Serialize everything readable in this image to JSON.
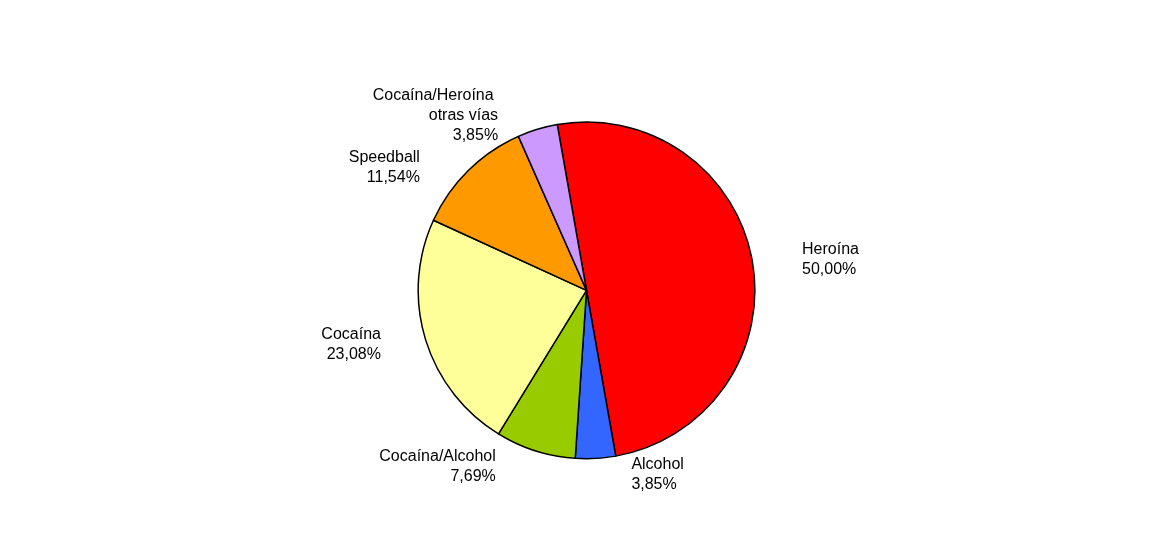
{
  "chart_data": {
    "type": "pie",
    "categories": [
      "Heroína",
      "Alcohol",
      "Cocaína/Alcohol",
      "Cocaína",
      "Speedball",
      "Cocaína/Heroína otras vías"
    ],
    "values": [
      50.0,
      3.85,
      7.69,
      23.08,
      11.54,
      3.85
    ],
    "value_labels": [
      "50,00%",
      "3,85%",
      "7,69%",
      "23,08%",
      "11,54%",
      "3,85%"
    ],
    "colors": [
      "#ff0000",
      "#3366ff",
      "#99cc00",
      "#ffff99",
      "#ff9900",
      "#cc99ff"
    ],
    "legend": false
  }
}
